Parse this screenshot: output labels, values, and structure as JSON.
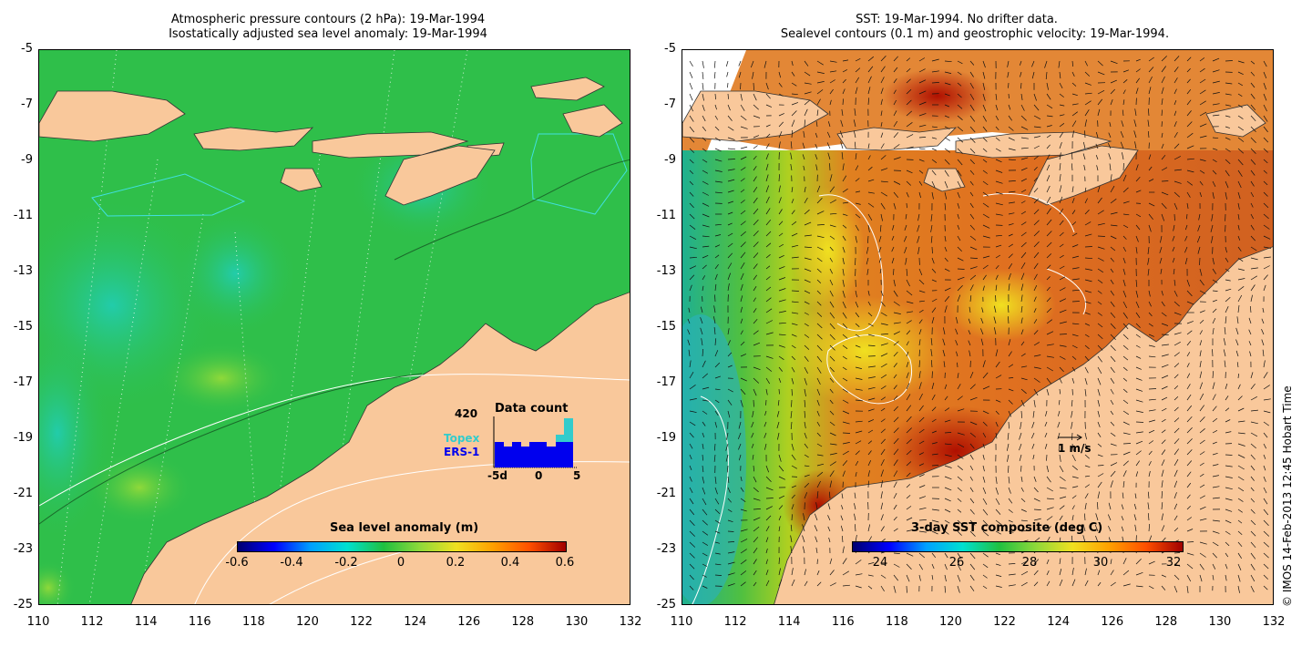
{
  "left_panel": {
    "title_line1": "Atmospheric pressure contours (2 hPa): 19-Mar-1994",
    "title_line2": "Isostatically adjusted sea level anomaly: 19-Mar-1994",
    "colorbar": {
      "label": "Sea level anomaly (m)",
      "ticks": [
        "-0.6",
        "-0.4",
        "-0.2",
        "0",
        "0.2",
        "0.4",
        "0.6"
      ]
    },
    "data_count": {
      "title": "Data count",
      "max_label": "420",
      "legend_topex": "Topex",
      "legend_ers1": "ERS-1",
      "x_ticks": [
        "-5d",
        "0",
        "5"
      ],
      "colors": {
        "topex": "#33cccc",
        "ers1": "#0000ee"
      }
    }
  },
  "right_panel": {
    "title_line1": "SST: 19-Mar-1994. No drifter data.",
    "title_line2": "Sealevel contours (0.1 m) and geostrophic velocity: 19-Mar-1994.",
    "colorbar": {
      "label": "3-day SST composite (deg C)",
      "ticks": [
        "24",
        "26",
        "28",
        "30",
        "32"
      ]
    },
    "velocity_scale": "1 m/s"
  },
  "axes": {
    "y_ticks": [
      "-5",
      "-7",
      "-9",
      "-11",
      "-13",
      "-15",
      "-17",
      "-19",
      "-21",
      "-23",
      "-25"
    ],
    "x_ticks": [
      "110",
      "112",
      "114",
      "116",
      "118",
      "120",
      "122",
      "124",
      "126",
      "128",
      "130",
      "132"
    ]
  },
  "credit": "© IMOS 14-Feb-2013 12:45 Hobart Time",
  "colors": {
    "land": "#f9c89b",
    "sea_left": "#2fbf4a",
    "sea_right": "#e07a20"
  }
}
